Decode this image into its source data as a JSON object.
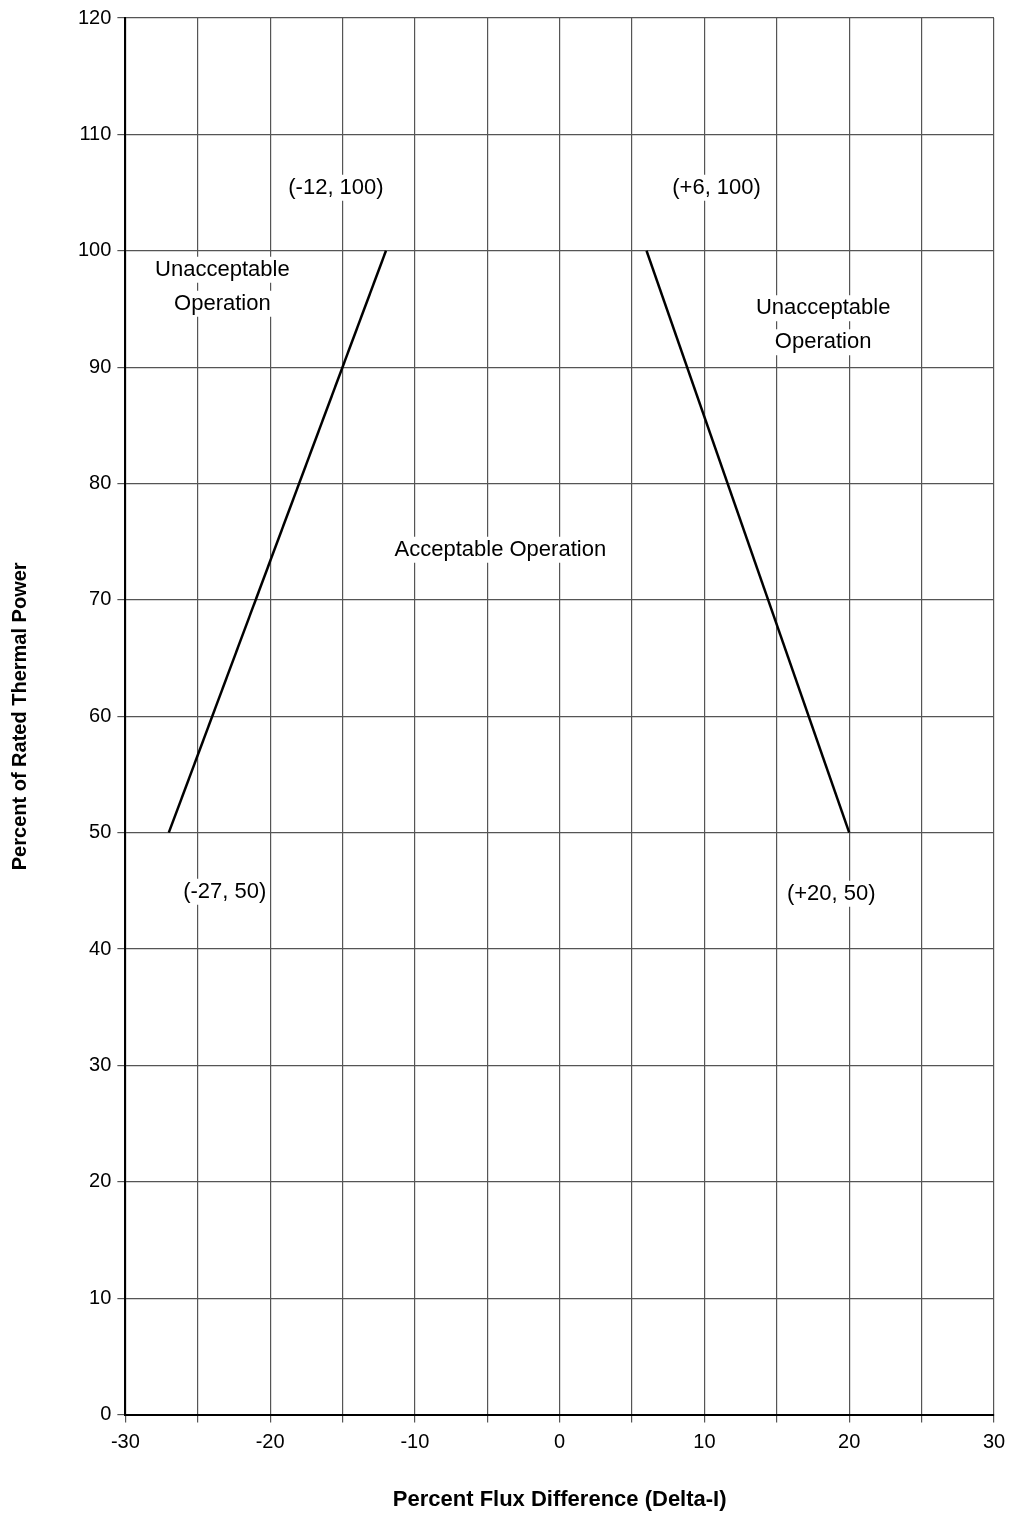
{
  "chart_data": {
    "type": "line",
    "xlabel": "Percent Flux Difference (Delta-I)",
    "ylabel": "Percent of Rated Thermal Power",
    "xlim": [
      -30,
      30
    ],
    "xticks": [
      -30,
      {
        "value": -25,
        "label": null
      },
      -20,
      {
        "value": -15,
        "label": null
      },
      -10,
      {
        "value": -5,
        "label": null
      },
      0,
      {
        "value": 5,
        "label": null
      },
      10,
      {
        "value": 15,
        "label": null
      },
      20,
      {
        "value": 25,
        "label": null
      },
      30
    ],
    "ylim": [
      0,
      120
    ],
    "yticks": [
      0,
      10,
      20,
      30,
      40,
      50,
      60,
      70,
      80,
      90,
      100,
      110,
      120
    ],
    "series": [
      {
        "color": "#000000",
        "x": [
          -27,
          -12
        ],
        "values": [
          50,
          100
        ]
      },
      {
        "color": "#000000",
        "x": [
          6,
          20
        ],
        "values": [
          100,
          50
        ]
      }
    ],
    "annotations": [
      {
        "text": "(-12, 100)",
        "x": -12,
        "y": 100
      },
      {
        "text": "(+6, 100)",
        "x": 6,
        "y": 100
      },
      {
        "text": "(-27, 50)",
        "x": -27,
        "y": 50
      },
      {
        "text": "(+20, 50)",
        "x": 20,
        "y": 50
      },
      "Unacceptable Operation",
      "Unacceptable Operation",
      "Acceptable Operation"
    ],
    "grid": true,
    "legend": false,
    "marker": "none",
    "line_style": "solid"
  }
}
